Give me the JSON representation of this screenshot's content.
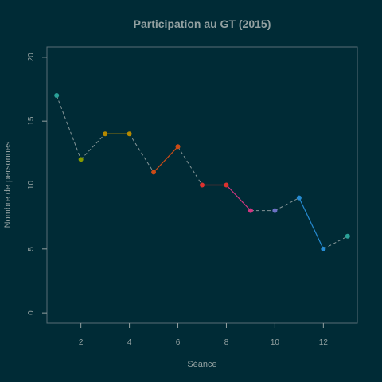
{
  "chart_data": {
    "type": "line",
    "title": "Participation au GT (2015)",
    "xlabel": "Séance",
    "ylabel": "Nombre de personnes",
    "xlim": [
      0.6,
      13.4
    ],
    "ylim": [
      -0.8,
      20.8
    ],
    "xticks": [
      2,
      4,
      6,
      8,
      10,
      12
    ],
    "yticks": [
      0,
      5,
      10,
      15,
      20
    ],
    "x": [
      1,
      2,
      3,
      4,
      5,
      6,
      7,
      8,
      9,
      10,
      11,
      12,
      13
    ],
    "values": [
      17,
      12,
      14,
      14,
      11,
      13,
      10,
      10,
      8,
      8,
      9,
      5,
      6
    ],
    "point_colors": [
      "#2aa198",
      "#859900",
      "#b58900",
      "#b58900",
      "#cb4b16",
      "#cb4b16",
      "#dc322f",
      "#dc322f",
      "#d33682",
      "#6c71c4",
      "#268bd2",
      "#268bd2",
      "#2aa198"
    ],
    "links": [
      {
        "from": 1,
        "to": 2,
        "style": "dashed",
        "color": "#839496"
      },
      {
        "from": 2,
        "to": 3,
        "style": "dashed",
        "color": "#839496"
      },
      {
        "from": 3,
        "to": 4,
        "style": "solid",
        "color": "#b58900"
      },
      {
        "from": 4,
        "to": 5,
        "style": "dashed",
        "color": "#839496"
      },
      {
        "from": 5,
        "to": 6,
        "style": "solid",
        "color": "#cb4b16"
      },
      {
        "from": 6,
        "to": 7,
        "style": "dashed",
        "color": "#839496"
      },
      {
        "from": 7,
        "to": 8,
        "style": "solid",
        "color": "#dc322f"
      },
      {
        "from": 8,
        "to": 9,
        "style": "solid",
        "color": "#d33682"
      },
      {
        "from": 9,
        "to": 10,
        "style": "dashed",
        "color": "#839496"
      },
      {
        "from": 10,
        "to": 11,
        "style": "dashed",
        "color": "#839496"
      },
      {
        "from": 11,
        "to": 12,
        "style": "solid",
        "color": "#268bd2"
      },
      {
        "from": 12,
        "to": 13,
        "style": "dashed",
        "color": "#839496"
      }
    ],
    "grid": false,
    "legend": "none"
  },
  "colors": {
    "background": "#002b36",
    "axis": "#93a1a1",
    "frame": "#586e75"
  }
}
